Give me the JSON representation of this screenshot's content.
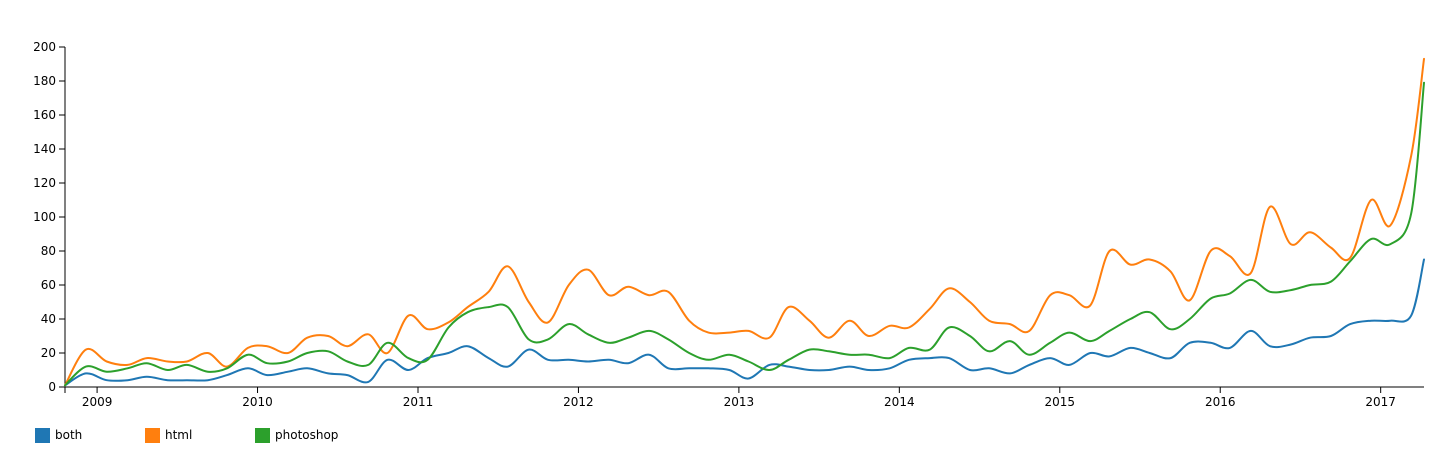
{
  "chart_data": {
    "type": "line",
    "title": "",
    "xlabel": "",
    "ylabel": "",
    "ylim": [
      0,
      200
    ],
    "yticks": [
      0,
      20,
      40,
      60,
      80,
      100,
      120,
      140,
      160,
      180,
      200
    ],
    "xlim": [
      2008.8,
      2017.27
    ],
    "xticks": [
      "2009",
      "2010",
      "2011",
      "2012",
      "2013",
      "2014",
      "2015",
      "2016",
      "2017"
    ],
    "legend_position": "bottom-left",
    "series": [
      {
        "name": "both",
        "color": "#1f77b4",
        "points": [
          [
            2008.8,
            1
          ],
          [
            2008.93,
            8
          ],
          [
            2009.06,
            4
          ],
          [
            2009.19,
            4
          ],
          [
            2009.31,
            6
          ],
          [
            2009.44,
            4
          ],
          [
            2009.56,
            4
          ],
          [
            2009.69,
            4
          ],
          [
            2009.81,
            7
          ],
          [
            2009.94,
            11
          ],
          [
            2010.06,
            7
          ],
          [
            2010.19,
            9
          ],
          [
            2010.31,
            11
          ],
          [
            2010.44,
            8
          ],
          [
            2010.56,
            7
          ],
          [
            2010.69,
            3
          ],
          [
            2010.81,
            16
          ],
          [
            2010.94,
            10
          ],
          [
            2011.06,
            17
          ],
          [
            2011.19,
            20
          ],
          [
            2011.31,
            24
          ],
          [
            2011.44,
            17
          ],
          [
            2011.56,
            12
          ],
          [
            2011.69,
            22
          ],
          [
            2011.81,
            16
          ],
          [
            2011.94,
            16
          ],
          [
            2012.06,
            15
          ],
          [
            2012.19,
            16
          ],
          [
            2012.31,
            14
          ],
          [
            2012.44,
            19
          ],
          [
            2012.56,
            11
          ],
          [
            2012.69,
            11
          ],
          [
            2012.81,
            11
          ],
          [
            2012.94,
            10
          ],
          [
            2013.06,
            5
          ],
          [
            2013.19,
            13
          ],
          [
            2013.31,
            12
          ],
          [
            2013.44,
            10
          ],
          [
            2013.56,
            10
          ],
          [
            2013.69,
            12
          ],
          [
            2013.81,
            10
          ],
          [
            2013.94,
            11
          ],
          [
            2014.06,
            16
          ],
          [
            2014.19,
            17
          ],
          [
            2014.31,
            17
          ],
          [
            2014.44,
            10
          ],
          [
            2014.56,
            11
          ],
          [
            2014.69,
            8
          ],
          [
            2014.81,
            13
          ],
          [
            2014.94,
            17
          ],
          [
            2015.06,
            13
          ],
          [
            2015.19,
            20
          ],
          [
            2015.31,
            18
          ],
          [
            2015.44,
            23
          ],
          [
            2015.56,
            20
          ],
          [
            2015.69,
            17
          ],
          [
            2015.81,
            26
          ],
          [
            2015.94,
            26
          ],
          [
            2016.06,
            23
          ],
          [
            2016.19,
            33
          ],
          [
            2016.31,
            24
          ],
          [
            2016.44,
            25
          ],
          [
            2016.56,
            29
          ],
          [
            2016.69,
            30
          ],
          [
            2016.81,
            37
          ],
          [
            2016.94,
            39
          ],
          [
            2017.06,
            39
          ],
          [
            2017.19,
            42
          ],
          [
            2017.27,
            75
          ]
        ]
      },
      {
        "name": "html",
        "color": "#ff7f0e",
        "points": [
          [
            2008.8,
            1
          ],
          [
            2008.93,
            22
          ],
          [
            2009.06,
            15
          ],
          [
            2009.19,
            13
          ],
          [
            2009.31,
            17
          ],
          [
            2009.44,
            15
          ],
          [
            2009.56,
            15
          ],
          [
            2009.69,
            20
          ],
          [
            2009.81,
            12
          ],
          [
            2009.94,
            23
          ],
          [
            2010.06,
            24
          ],
          [
            2010.19,
            20
          ],
          [
            2010.31,
            29
          ],
          [
            2010.44,
            30
          ],
          [
            2010.56,
            24
          ],
          [
            2010.69,
            31
          ],
          [
            2010.81,
            20
          ],
          [
            2010.94,
            42
          ],
          [
            2011.06,
            34
          ],
          [
            2011.19,
            38
          ],
          [
            2011.31,
            47
          ],
          [
            2011.44,
            56
          ],
          [
            2011.56,
            71
          ],
          [
            2011.69,
            50
          ],
          [
            2011.81,
            38
          ],
          [
            2011.94,
            60
          ],
          [
            2012.06,
            69
          ],
          [
            2012.19,
            54
          ],
          [
            2012.31,
            59
          ],
          [
            2012.44,
            54
          ],
          [
            2012.56,
            56
          ],
          [
            2012.69,
            39
          ],
          [
            2012.81,
            32
          ],
          [
            2012.94,
            32
          ],
          [
            2013.06,
            33
          ],
          [
            2013.19,
            29
          ],
          [
            2013.31,
            47
          ],
          [
            2013.44,
            39
          ],
          [
            2013.56,
            29
          ],
          [
            2013.69,
            39
          ],
          [
            2013.81,
            30
          ],
          [
            2013.94,
            36
          ],
          [
            2014.06,
            35
          ],
          [
            2014.19,
            46
          ],
          [
            2014.31,
            58
          ],
          [
            2014.44,
            50
          ],
          [
            2014.56,
            39
          ],
          [
            2014.69,
            37
          ],
          [
            2014.81,
            33
          ],
          [
            2014.94,
            54
          ],
          [
            2015.06,
            54
          ],
          [
            2015.19,
            48
          ],
          [
            2015.31,
            80
          ],
          [
            2015.44,
            72
          ],
          [
            2015.56,
            75
          ],
          [
            2015.69,
            68
          ],
          [
            2015.81,
            51
          ],
          [
            2015.94,
            80
          ],
          [
            2016.06,
            77
          ],
          [
            2016.19,
            67
          ],
          [
            2016.31,
            106
          ],
          [
            2016.44,
            84
          ],
          [
            2016.56,
            91
          ],
          [
            2016.69,
            82
          ],
          [
            2016.81,
            76
          ],
          [
            2016.94,
            110
          ],
          [
            2017.06,
            95
          ],
          [
            2017.19,
            136
          ],
          [
            2017.27,
            193
          ]
        ]
      },
      {
        "name": "photoshop",
        "color": "#2ca02c",
        "points": [
          [
            2008.8,
            1
          ],
          [
            2008.93,
            12
          ],
          [
            2009.06,
            9
          ],
          [
            2009.19,
            11
          ],
          [
            2009.31,
            14
          ],
          [
            2009.44,
            10
          ],
          [
            2009.56,
            13
          ],
          [
            2009.69,
            9
          ],
          [
            2009.81,
            11
          ],
          [
            2009.94,
            19
          ],
          [
            2010.06,
            14
          ],
          [
            2010.19,
            15
          ],
          [
            2010.31,
            20
          ],
          [
            2010.44,
            21
          ],
          [
            2010.56,
            15
          ],
          [
            2010.69,
            13
          ],
          [
            2010.81,
            26
          ],
          [
            2010.94,
            17
          ],
          [
            2011.06,
            16
          ],
          [
            2011.19,
            35
          ],
          [
            2011.31,
            44
          ],
          [
            2011.44,
            47
          ],
          [
            2011.56,
            47
          ],
          [
            2011.69,
            28
          ],
          [
            2011.81,
            28
          ],
          [
            2011.94,
            37
          ],
          [
            2012.06,
            31
          ],
          [
            2012.19,
            26
          ],
          [
            2012.31,
            29
          ],
          [
            2012.44,
            33
          ],
          [
            2012.56,
            28
          ],
          [
            2012.69,
            20
          ],
          [
            2012.81,
            16
          ],
          [
            2012.94,
            19
          ],
          [
            2013.06,
            15
          ],
          [
            2013.19,
            10
          ],
          [
            2013.31,
            16
          ],
          [
            2013.44,
            22
          ],
          [
            2013.56,
            21
          ],
          [
            2013.69,
            19
          ],
          [
            2013.81,
            19
          ],
          [
            2013.94,
            17
          ],
          [
            2014.06,
            23
          ],
          [
            2014.19,
            22
          ],
          [
            2014.31,
            35
          ],
          [
            2014.44,
            30
          ],
          [
            2014.56,
            21
          ],
          [
            2014.69,
            27
          ],
          [
            2014.81,
            19
          ],
          [
            2014.94,
            26
          ],
          [
            2015.06,
            32
          ],
          [
            2015.19,
            27
          ],
          [
            2015.31,
            33
          ],
          [
            2015.44,
            40
          ],
          [
            2015.56,
            44
          ],
          [
            2015.69,
            34
          ],
          [
            2015.81,
            40
          ],
          [
            2015.94,
            52
          ],
          [
            2016.06,
            55
          ],
          [
            2016.19,
            63
          ],
          [
            2016.31,
            56
          ],
          [
            2016.44,
            57
          ],
          [
            2016.56,
            60
          ],
          [
            2016.69,
            62
          ],
          [
            2016.81,
            74
          ],
          [
            2016.94,
            87
          ],
          [
            2017.06,
            84
          ],
          [
            2017.19,
            102
          ],
          [
            2017.27,
            179
          ]
        ]
      }
    ]
  }
}
